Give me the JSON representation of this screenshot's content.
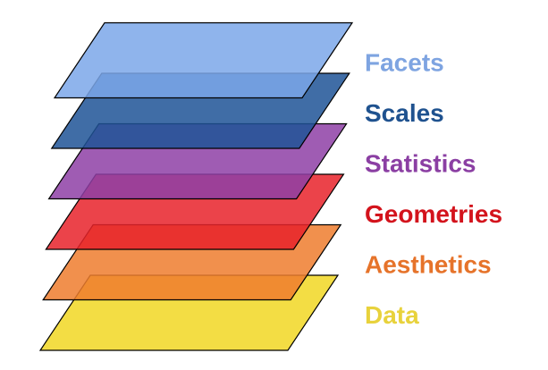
{
  "layers": [
    {
      "label": "Data",
      "fill": "#F2DB3A",
      "text_color": "#E8D23C"
    },
    {
      "label": "Aesthetics",
      "fill": "#EE7D2E",
      "text_color": "#E6732A"
    },
    {
      "label": "Geometries",
      "fill": "#E8222A",
      "text_color": "#D3131C"
    },
    {
      "label": "Statistics",
      "fill": "#8E3FA6",
      "text_color": "#8B3FA3"
    },
    {
      "label": "Scales",
      "fill": "#1E5496",
      "text_color": "#1F528F"
    },
    {
      "label": "Facets",
      "fill": "#7BA7E9",
      "text_color": "#7EA4E1"
    }
  ]
}
